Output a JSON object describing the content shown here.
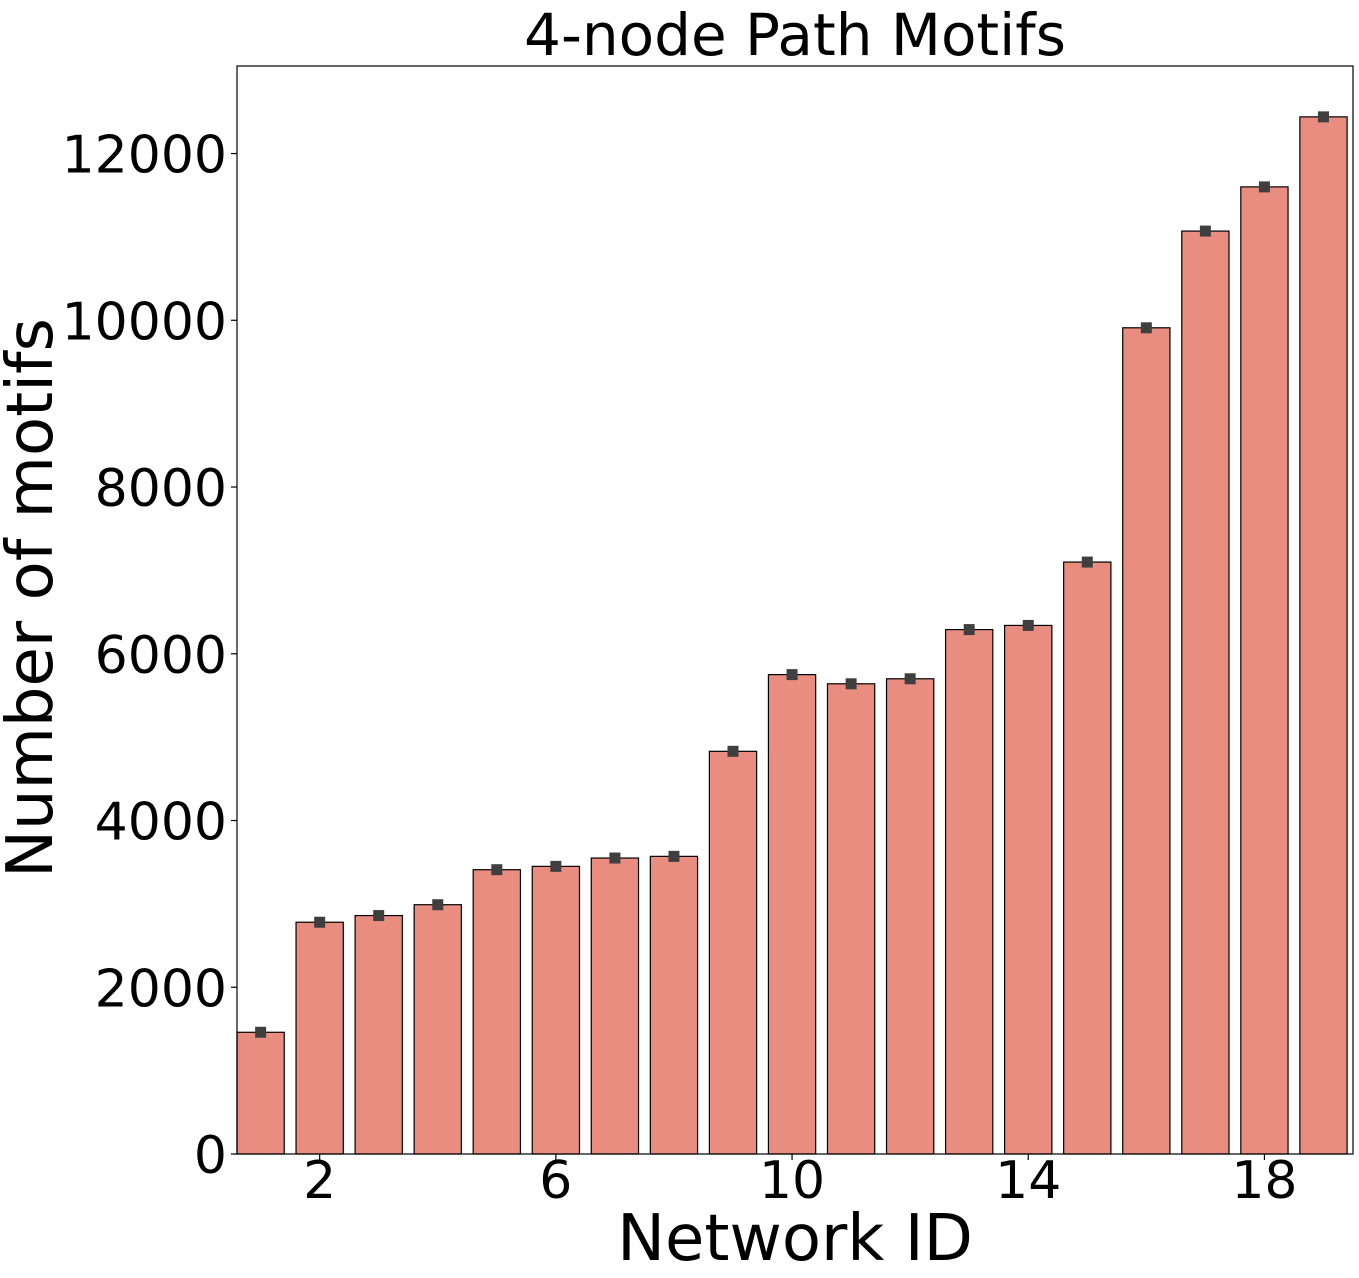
{
  "chart_data": {
    "type": "bar",
    "title": "4-node Path Motifs",
    "xlabel": "Network ID",
    "ylabel": "Number of motifs",
    "categories": [
      1,
      2,
      3,
      4,
      5,
      6,
      7,
      8,
      9,
      10,
      11,
      12,
      13,
      14,
      15,
      16,
      17,
      18,
      19
    ],
    "values": [
      1460,
      2780,
      2860,
      2990,
      3410,
      3450,
      3550,
      3570,
      4830,
      5750,
      5640,
      5700,
      6290,
      6340,
      7100,
      9910,
      11070,
      11600,
      12440
    ],
    "xticks": [
      "2",
      "6",
      "10",
      "14",
      "18"
    ],
    "xtick_positions": [
      2,
      6,
      10,
      14,
      18
    ],
    "yticks": [
      "0",
      "2000",
      "4000",
      "6000",
      "8000",
      "10000",
      "12000"
    ],
    "ytick_values": [
      0,
      2000,
      4000,
      6000,
      8000,
      10000,
      12000
    ],
    "ylim": [
      0,
      13050
    ],
    "xlim": [
      0.6,
      19.5
    ],
    "grid": false,
    "legend": "none",
    "bar_color": "#e98d80",
    "bar_edge_color": "#000000",
    "marker_color": "#3f3f3f"
  }
}
